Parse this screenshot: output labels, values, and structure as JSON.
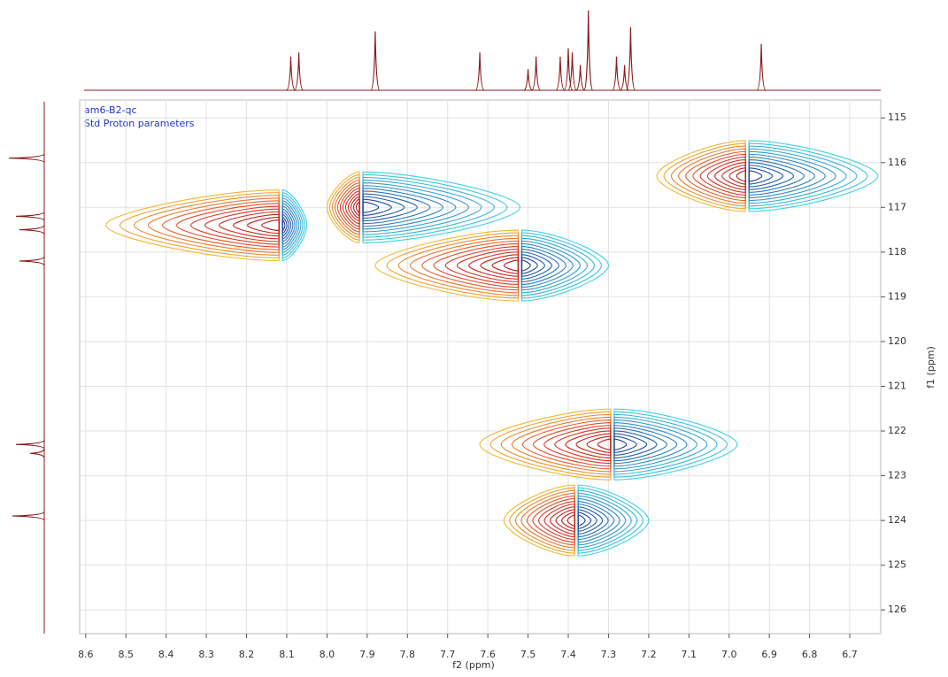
{
  "chart_data": {
    "type": "contour",
    "title": "am6-B2-qc",
    "subtitle": "Std Proton parameters",
    "x_label": "f2 (ppm)",
    "y_label": "f1 (ppm)",
    "xlim": [
      8.615,
      6.623
    ],
    "ylim": [
      114.6,
      126.53
    ],
    "xticks": [
      {
        "value": 8.6,
        "label": "8.6"
      },
      {
        "value": 8.5,
        "label": "8.5"
      },
      {
        "value": 8.4,
        "label": "8.4"
      },
      {
        "value": 8.3,
        "label": "8.3"
      },
      {
        "value": 8.2,
        "label": "8.2"
      },
      {
        "value": 8.1,
        "label": "8.1"
      },
      {
        "value": 8.0,
        "label": "8.0"
      },
      {
        "value": 7.9,
        "label": "7.9"
      },
      {
        "value": 7.8,
        "label": "7.8"
      },
      {
        "value": 7.7,
        "label": "7.7"
      },
      {
        "value": 7.6,
        "label": "7.6"
      },
      {
        "value": 7.5,
        "label": "7.5"
      },
      {
        "value": 7.4,
        "label": "7.4"
      },
      {
        "value": 7.3,
        "label": "7.3"
      },
      {
        "value": 7.2,
        "label": "7.2"
      },
      {
        "value": 7.1,
        "label": "7.1"
      },
      {
        "value": 7.0,
        "label": "7.0"
      },
      {
        "value": 6.9,
        "label": "6.9"
      },
      {
        "value": 6.8,
        "label": "6.8"
      },
      {
        "value": 6.7,
        "label": "6.7"
      }
    ],
    "yticks": [
      115,
      116,
      117,
      118,
      119,
      120,
      121,
      122,
      123,
      124,
      125,
      126
    ],
    "grid": true,
    "positive_colors": [
      "#f2b830",
      "#e0402a",
      "#b81818"
    ],
    "negative_colors": [
      "#3fd2e2",
      "#2f86c4",
      "#1c3f94"
    ],
    "peaks": [
      {
        "x": 8.115,
        "y": 117.4,
        "left": 8.55,
        "right": 8.05
      },
      {
        "x": 7.915,
        "y": 117.0,
        "left": 8.0,
        "right": 7.52
      },
      {
        "x": 7.52,
        "y": 118.3,
        "left": 7.88,
        "right": 7.3
      },
      {
        "x": 6.955,
        "y": 116.3,
        "left": 7.18,
        "right": 6.63
      },
      {
        "x": 7.29,
        "y": 122.3,
        "left": 7.62,
        "right": 6.98
      },
      {
        "x": 7.38,
        "y": 124.0,
        "left": 7.56,
        "right": 7.2
      }
    ],
    "f2_projection": {
      "x": [
        8.09,
        8.07,
        7.88,
        7.62,
        7.5,
        7.48,
        7.42,
        7.4,
        7.39,
        7.37,
        7.35,
        7.28,
        7.26,
        7.245,
        6.92
      ],
      "intensity": [
        40,
        45,
        70,
        45,
        25,
        40,
        40,
        50,
        45,
        30,
        95,
        40,
        30,
        75,
        55
      ]
    },
    "f1_projection": {
      "y": [
        115.9,
        117.2,
        117.5,
        118.2,
        122.3,
        122.5,
        123.9
      ],
      "intensity": [
        50,
        40,
        35,
        35,
        40,
        20,
        45
      ]
    }
  }
}
